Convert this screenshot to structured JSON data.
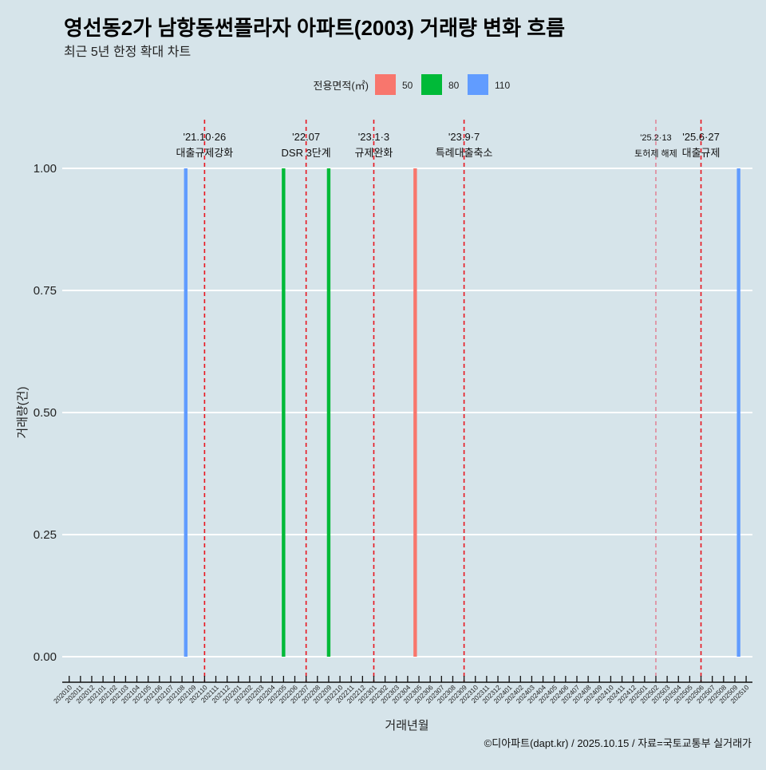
{
  "chart_data": {
    "type": "bar",
    "title": "영선동2가 남항동썬플라자 아파트(2003) 거래량 변화 흐름",
    "subtitle": "최근 5년 한정 확대 차트",
    "xlabel": "거래년월",
    "ylabel": "거래량(건)",
    "ylim": [
      0,
      1
    ],
    "yticks": [
      "0.00",
      "0.25",
      "0.50",
      "0.75",
      "1.00"
    ],
    "ytick_values": [
      0,
      0.25,
      0.5,
      0.75,
      1.0
    ],
    "grid": true,
    "legend": {
      "title": "전용면적(㎡)",
      "placement": "top",
      "entries": [
        {
          "label": "50",
          "color": "#f8766d"
        },
        {
          "label": "80",
          "color": "#00ba38"
        },
        {
          "label": "110",
          "color": "#619cff"
        }
      ]
    },
    "categories": [
      "202010",
      "202011",
      "202012",
      "202101",
      "202102",
      "202103",
      "202104",
      "202105",
      "202106",
      "202107",
      "202108",
      "202109",
      "202110",
      "202111",
      "202112",
      "202201",
      "202202",
      "202203",
      "202204",
      "202205",
      "202206",
      "202207",
      "202208",
      "202209",
      "202210",
      "202211",
      "202212",
      "202301",
      "202302",
      "202303",
      "202304",
      "202305",
      "202306",
      "202307",
      "202308",
      "202309",
      "202310",
      "202311",
      "202312",
      "202401",
      "202402",
      "202403",
      "202404",
      "202405",
      "202406",
      "202407",
      "202408",
      "202409",
      "202410",
      "202411",
      "202412",
      "202501",
      "202502",
      "202503",
      "202504",
      "202505",
      "202506",
      "202507",
      "202508",
      "202509",
      "202510"
    ],
    "series": [
      {
        "name": "50",
        "color": "#f8766d",
        "points": [
          {
            "x": "202305",
            "y": 1
          }
        ]
      },
      {
        "name": "80",
        "color": "#00ba38",
        "points": [
          {
            "x": "202205",
            "y": 1
          },
          {
            "x": "202209",
            "y": 1
          }
        ]
      },
      {
        "name": "110",
        "color": "#619cff",
        "points": [
          {
            "x": "202108",
            "y": 1
          },
          {
            "x": "202509",
            "y": 1
          }
        ]
      }
    ],
    "annotations": [
      {
        "x": "202110",
        "date": "'21.10·26",
        "label": "대출규제강화",
        "strong": true
      },
      {
        "x": "202207",
        "date": "'22.07",
        "label": "DSR 3단계",
        "strong": true
      },
      {
        "x": "202301",
        "date": "'23.1·3",
        "label": "규제완화",
        "strong": true
      },
      {
        "x": "202309",
        "date": "'23.9·7",
        "label": "특례대출축소",
        "strong": true
      },
      {
        "x": "202502",
        "date": "'25.2·13",
        "label": "토허제 해제",
        "strong": false
      },
      {
        "x": "202506",
        "date": "'25.6·27",
        "label": "대출규제",
        "strong": true
      }
    ],
    "caption": "©디아파트(dapt.kr) / 2025.10.15 / 자료=국토교통부 실거래가"
  }
}
